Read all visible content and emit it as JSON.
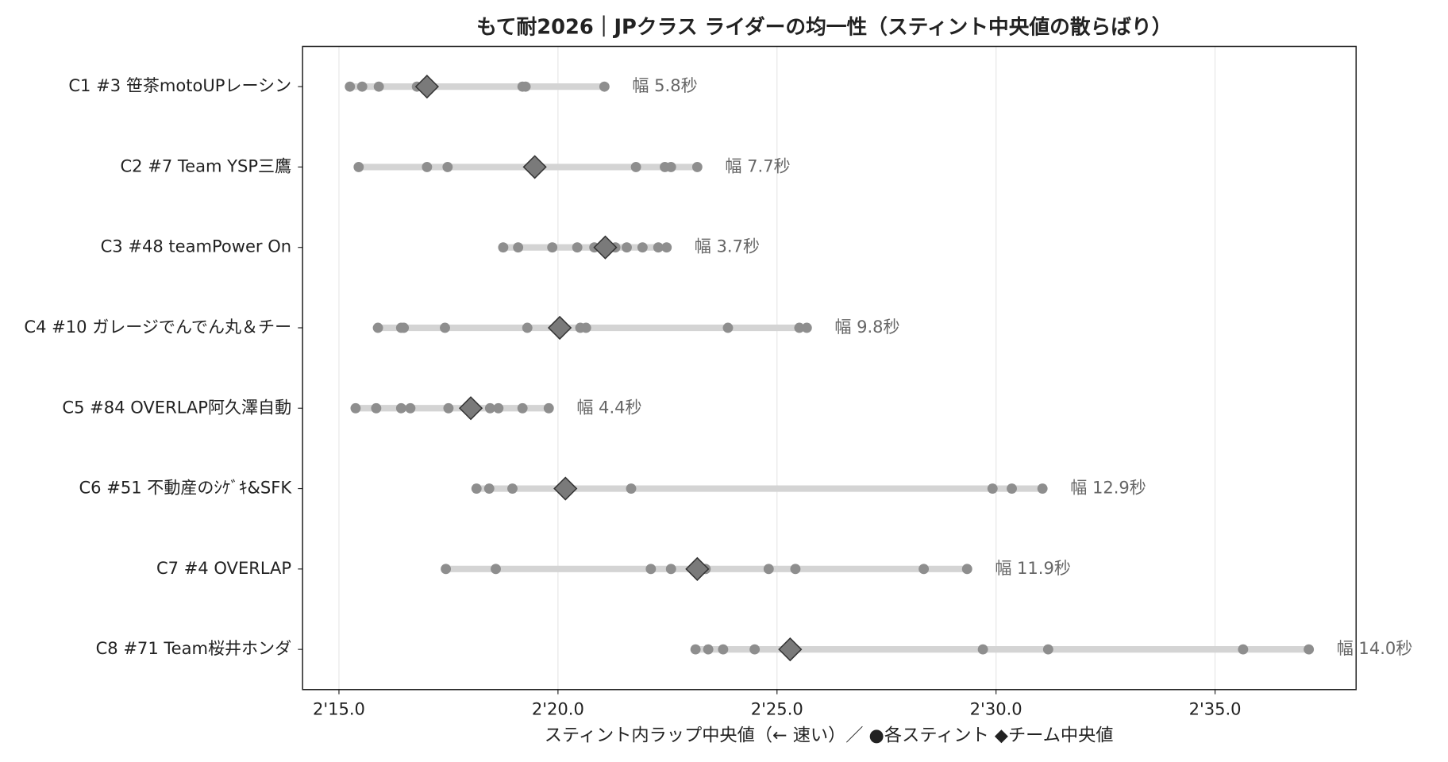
{
  "chart_data": {
    "type": "strip",
    "title": "もて耐2026｜JPクラス ライダーの均一性（スティント中央値の散らばり）",
    "xlabel": "スティント内ラップ中央値（← 速い）／ ●各スティント ◆チーム中央値",
    "categories": [
      "C1 #3 笹茶motoUPレーシン",
      "C2 #7 Team YSP三鷹",
      "C3 #48 teamPower On",
      "C4 #10 ガレージでんでん丸＆チー",
      "C5 #84 OVERLAP阿久澤自動",
      "C6 #51 不動産のｼｹﾞｷ&SFK",
      "C7 #4 OVERLAP",
      "C8 #71 Team桜井ホンダ"
    ],
    "stints": [
      [
        135.25,
        135.53,
        135.91,
        136.78,
        139.19,
        139.26,
        141.06
      ],
      [
        135.45,
        137.01,
        137.48,
        141.78,
        142.44,
        142.58,
        143.18
      ],
      [
        138.75,
        139.09,
        139.87,
        140.44,
        140.83,
        141.31,
        141.57,
        141.93,
        142.29,
        142.48
      ],
      [
        135.89,
        136.42,
        136.48,
        137.42,
        139.3,
        140.51,
        140.64,
        143.88,
        145.51,
        145.68
      ],
      [
        135.38,
        135.85,
        136.42,
        136.63,
        137.5,
        138.45,
        138.64,
        139.19,
        139.79
      ],
      [
        138.14,
        138.43,
        138.96,
        141.67,
        149.92,
        150.36,
        151.06
      ],
      [
        137.44,
        138.58,
        142.12,
        142.58,
        143.37,
        144.81,
        145.42,
        148.35,
        149.34
      ],
      [
        143.14,
        143.43,
        143.77,
        144.49,
        149.7,
        151.19,
        155.64,
        157.14
      ]
    ],
    "medians": [
      137.01,
      139.47,
      141.08,
      140.04,
      138.01,
      140.17,
      143.18,
      145.3
    ],
    "range_labels": [
      "幅 5.8秒",
      "幅 7.7秒",
      "幅 3.7秒",
      "幅 9.8秒",
      "幅 4.4秒",
      "幅 12.9秒",
      "幅 11.9秒",
      "幅 14.0秒"
    ],
    "xlim": [
      134.17,
      158.22
    ],
    "xticks": [
      {
        "value": 135,
        "label": "2'15.0"
      },
      {
        "value": 140,
        "label": "2'20.0"
      },
      {
        "value": 145,
        "label": "2'25.0"
      },
      {
        "value": 150,
        "label": "2'30.0"
      },
      {
        "value": 155,
        "label": "2'35.0"
      }
    ],
    "grid": true,
    "point_color": "#8e8e8e",
    "median_color": "#7a7a7a",
    "range_color": "#d4d4d4"
  }
}
